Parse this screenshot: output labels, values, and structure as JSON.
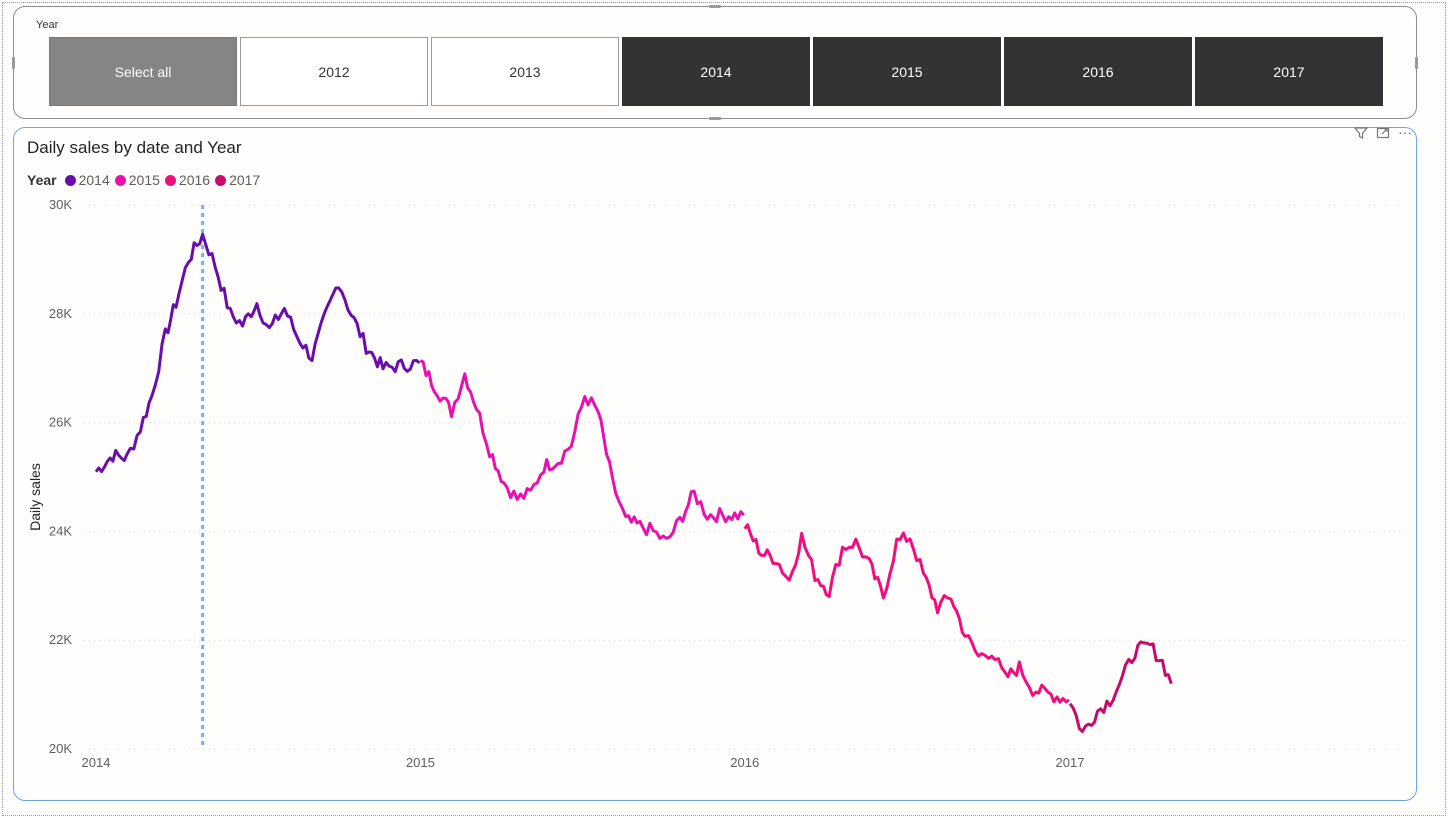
{
  "slicer": {
    "title": "Year",
    "buttons": [
      {
        "label": "Select all",
        "state": "partial"
      },
      {
        "label": "2012",
        "state": "unselected"
      },
      {
        "label": "2013",
        "state": "unselected"
      },
      {
        "label": "2014",
        "state": "selected"
      },
      {
        "label": "2015",
        "state": "selected"
      },
      {
        "label": "2016",
        "state": "selected"
      },
      {
        "label": "2017",
        "state": "selected"
      }
    ]
  },
  "visual": {
    "title": "Daily sales by date and Year",
    "header_icons": [
      "filter-icon",
      "focus-mode-icon",
      "more-options-icon"
    ],
    "legend": {
      "title": "Year",
      "items": [
        {
          "label": "2014",
          "color": "#6a0dad"
        },
        {
          "label": "2015",
          "color": "#e810b0"
        },
        {
          "label": "2016",
          "color": "#f20c80"
        },
        {
          "label": "2017",
          "color": "#c80a6e"
        }
      ]
    }
  },
  "chart_data": {
    "type": "line",
    "title": "Daily sales by date and Year",
    "xlabel": "",
    "ylabel": "Daily sales",
    "x_ticks": [
      "2014",
      "2015",
      "2016",
      "2017"
    ],
    "y_ticks": [
      "20K",
      "22K",
      "24K",
      "26K",
      "28K",
      "30K"
    ],
    "ylim": [
      20000,
      30000
    ],
    "xlim": [
      "2014-01-01",
      "2017-12-31"
    ],
    "grid": true,
    "legend_position": "top-left",
    "reference_line_date": "2014-05-01",
    "series": [
      {
        "name": "2014",
        "color": "#6a0dad",
        "points": [
          [
            "2014-01-01",
            25100
          ],
          [
            "2014-01-20",
            25400
          ],
          [
            "2014-02-05",
            25350
          ],
          [
            "2014-02-20",
            25900
          ],
          [
            "2014-03-05",
            26500
          ],
          [
            "2014-03-20",
            27600
          ],
          [
            "2014-04-01",
            28200
          ],
          [
            "2014-04-15",
            29000
          ],
          [
            "2014-05-01",
            29450
          ],
          [
            "2014-05-15",
            28900
          ],
          [
            "2014-06-01",
            28000
          ],
          [
            "2014-06-15",
            27800
          ],
          [
            "2014-07-01",
            28200
          ],
          [
            "2014-07-15",
            27700
          ],
          [
            "2014-08-01",
            28100
          ],
          [
            "2014-08-15",
            27600
          ],
          [
            "2014-09-01",
            27200
          ],
          [
            "2014-09-15",
            27900
          ],
          [
            "2014-10-01",
            28600
          ],
          [
            "2014-10-15",
            28000
          ],
          [
            "2014-11-01",
            27400
          ],
          [
            "2014-11-20",
            27000
          ],
          [
            "2014-12-31",
            27100
          ]
        ]
      },
      {
        "name": "2015",
        "color": "#e810b0",
        "points": [
          [
            "2015-01-01",
            27100
          ],
          [
            "2015-01-20",
            26600
          ],
          [
            "2015-02-05",
            26200
          ],
          [
            "2015-02-20",
            26900
          ],
          [
            "2015-03-05",
            26300
          ],
          [
            "2015-03-20",
            25500
          ],
          [
            "2015-04-05",
            24900
          ],
          [
            "2015-04-20",
            24600
          ],
          [
            "2015-05-05",
            24700
          ],
          [
            "2015-05-20",
            25200
          ],
          [
            "2015-06-05",
            25300
          ],
          [
            "2015-06-20",
            25600
          ],
          [
            "2015-07-05",
            26500
          ],
          [
            "2015-07-20",
            26200
          ],
          [
            "2015-08-05",
            24900
          ],
          [
            "2015-08-20",
            24200
          ],
          [
            "2015-09-05",
            24100
          ],
          [
            "2015-09-20",
            24000
          ],
          [
            "2015-10-05",
            23800
          ],
          [
            "2015-10-20",
            24200
          ],
          [
            "2015-11-05",
            24700
          ],
          [
            "2015-11-20",
            24300
          ],
          [
            "2015-12-31",
            24300
          ]
        ]
      },
      {
        "name": "2016",
        "color": "#f20c80",
        "points": [
          [
            "2016-01-01",
            24100
          ],
          [
            "2016-01-20",
            23600
          ],
          [
            "2016-02-05",
            23500
          ],
          [
            "2016-02-20",
            23100
          ],
          [
            "2016-03-05",
            23900
          ],
          [
            "2016-03-20",
            23200
          ],
          [
            "2016-04-05",
            22900
          ],
          [
            "2016-04-20",
            23700
          ],
          [
            "2016-05-05",
            23800
          ],
          [
            "2016-05-20",
            23400
          ],
          [
            "2016-06-05",
            22800
          ],
          [
            "2016-06-20",
            23800
          ],
          [
            "2016-07-05",
            23900
          ],
          [
            "2016-07-20",
            23200
          ],
          [
            "2016-08-05",
            22600
          ],
          [
            "2016-08-20",
            22800
          ],
          [
            "2016-09-05",
            22100
          ],
          [
            "2016-09-20",
            21700
          ],
          [
            "2016-10-05",
            21800
          ],
          [
            "2016-10-20",
            21300
          ],
          [
            "2016-11-05",
            21500
          ],
          [
            "2016-11-20",
            21100
          ],
          [
            "2016-12-31",
            20900
          ]
        ]
      },
      {
        "name": "2017",
        "color": "#c80a6e",
        "points": [
          [
            "2017-01-01",
            20900
          ],
          [
            "2017-01-15",
            20300
          ],
          [
            "2017-02-01",
            20700
          ],
          [
            "2017-02-15",
            20900
          ],
          [
            "2017-03-01",
            21300
          ],
          [
            "2017-03-15",
            21800
          ],
          [
            "2017-04-01",
            21900
          ],
          [
            "2017-04-15",
            21600
          ],
          [
            "2017-04-25",
            21200
          ]
        ]
      }
    ]
  }
}
